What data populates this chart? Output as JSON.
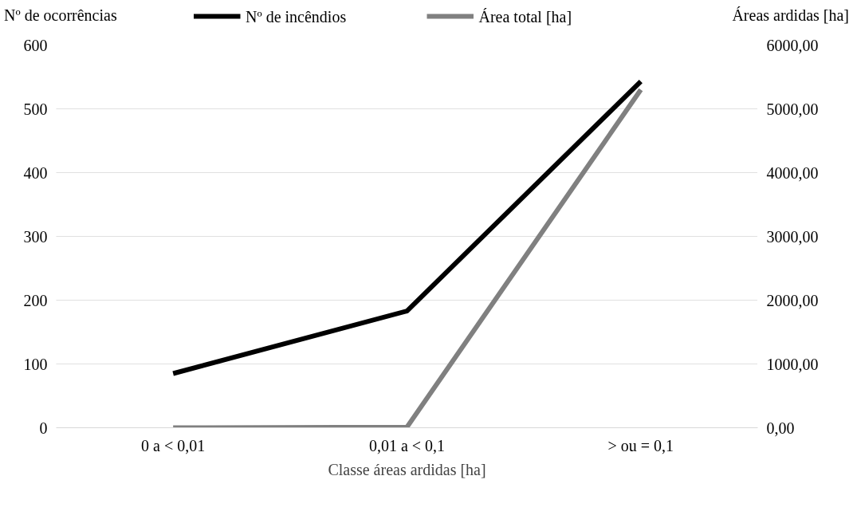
{
  "chart_data": {
    "type": "line",
    "xlabel": "Classe áreas ardidas [ha]",
    "ylabel": "Nº de ocorrências",
    "y2label": "Áreas ardidas [ha]",
    "categories": [
      "0 a < 0,01",
      "0,01 a < 0,1",
      "> ou = 0,1"
    ],
    "series": [
      {
        "name": "Nº de incêndios",
        "color": "#000000",
        "values": [
          85,
          183,
          543
        ]
      },
      {
        "name": "Área total [ha]",
        "color": "#808080",
        "values": [
          0,
          10,
          5300
        ],
        "axis": "y2"
      }
    ],
    "ylim": [
      0,
      600
    ],
    "yticks": [
      0,
      100,
      200,
      300,
      400,
      500,
      600
    ],
    "y2lim": [
      0,
      6000
    ],
    "y2ticks": [
      {
        "value": 0,
        "label": "0,00"
      },
      {
        "value": 1000,
        "label": "1000,00"
      },
      {
        "value": 2000,
        "label": "2000,00"
      },
      {
        "value": 3000,
        "label": "3000,00"
      },
      {
        "value": 4000,
        "label": "4000,00"
      },
      {
        "value": 5000,
        "label": "5000,00"
      },
      {
        "value": 6000,
        "label": "6000,00"
      }
    ],
    "grid": "y",
    "legend": "top",
    "marker": "none",
    "line_style": "solid"
  }
}
